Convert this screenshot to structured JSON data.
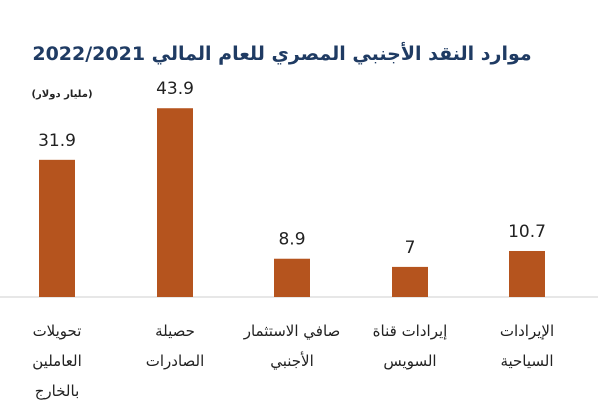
{
  "chart_data": {
    "type": "bar",
    "title": "موارد النقد الأجنبي المصري للعام المالي 2022/2021",
    "unit_label": "(مليار دولار)",
    "categories": [
      [
        "تحويلات",
        "العاملين",
        "بالخارج"
      ],
      [
        "حصيلة",
        "الصادرات"
      ],
      [
        "صافي الاستثمار",
        "الأجنبي"
      ],
      [
        "إيرادات قناة",
        "السويس"
      ],
      [
        "الإيرادات",
        "السياحية"
      ]
    ],
    "values": [
      31.9,
      43.9,
      8.9,
      7,
      10.7
    ],
    "value_labels": [
      "31.9",
      "43.9",
      "8.9",
      "7",
      "10.7"
    ],
    "ylim": [
      0,
      50
    ],
    "bar_color": "#b5541e",
    "grid": false,
    "legend": "none"
  }
}
